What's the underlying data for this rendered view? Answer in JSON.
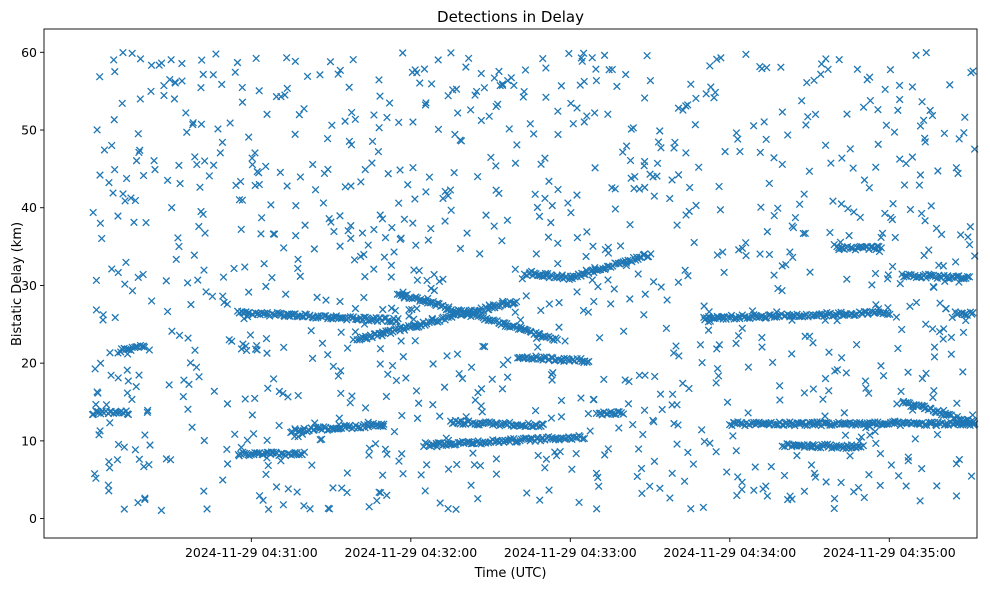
{
  "chart_data": {
    "type": "scatter",
    "title": "Detections in Delay",
    "xlabel": "Time (UTC)",
    "ylabel": "Bistatic Delay (km)",
    "x_tick_labels": [
      "2024-11-29 04:31:00",
      "2024-11-29 04:32:00",
      "2024-11-29 04:33:00",
      "2024-11-29 04:34:00",
      "2024-11-29 04:35:00"
    ],
    "x_ticks_sec": [
      60,
      120,
      180,
      240,
      300
    ],
    "y_ticks": [
      0,
      10,
      20,
      30,
      40,
      50,
      60
    ],
    "xlim_sec": [
      -18,
      333
    ],
    "ylim": [
      -2.5,
      63
    ],
    "grid": false,
    "marker": "x",
    "color": "#1f77b4",
    "tracks": [
      {
        "t_start": 0,
        "t_end": 14,
        "y_start": 13.6,
        "y_end": 13.6
      },
      {
        "t_start": 10,
        "t_end": 20,
        "y_start": 21.5,
        "y_end": 22.3
      },
      {
        "t_start": 55,
        "t_end": 115,
        "y_start": 26.5,
        "y_end": 25.5
      },
      {
        "t_start": 75,
        "t_end": 110,
        "y_start": 11.3,
        "y_end": 12.1
      },
      {
        "t_start": 100,
        "t_end": 160,
        "y_start": 23.0,
        "y_end": 28.0
      },
      {
        "t_start": 115,
        "t_end": 175,
        "y_start": 29.0,
        "y_end": 23.0
      },
      {
        "t_start": 135,
        "t_end": 170,
        "y_start": 12.4,
        "y_end": 12.0
      },
      {
        "t_start": 125,
        "t_end": 185,
        "y_start": 9.5,
        "y_end": 10.5
      },
      {
        "t_start": 160,
        "t_end": 187,
        "y_start": 20.8,
        "y_end": 20.3
      },
      {
        "t_start": 180,
        "t_end": 210,
        "y_start": 31.0,
        "y_end": 34.0
      },
      {
        "t_start": 163,
        "t_end": 180,
        "y_start": 31.5,
        "y_end": 31.0
      },
      {
        "t_start": 230,
        "t_end": 300,
        "y_start": 25.8,
        "y_end": 26.5
      },
      {
        "t_start": 240,
        "t_end": 340,
        "y_start": 12.2,
        "y_end": 12.2
      },
      {
        "t_start": 305,
        "t_end": 340,
        "y_start": 15.0,
        "y_end": 11.5
      },
      {
        "t_start": 305,
        "t_end": 330,
        "y_start": 31.3,
        "y_end": 31.0
      },
      {
        "t_start": 325,
        "t_end": 340,
        "y_start": 26.4,
        "y_end": 26.4
      },
      {
        "t_start": 260,
        "t_end": 290,
        "y_start": 9.5,
        "y_end": 9.2
      },
      {
        "t_start": 280,
        "t_end": 297,
        "y_start": 34.8,
        "y_end": 34.8
      },
      {
        "t_start": 55,
        "t_end": 80,
        "y_start": 8.3,
        "y_end": 8.3
      },
      {
        "t_start": 190,
        "t_end": 200,
        "y_start": 13.5,
        "y_end": 13.5
      }
    ],
    "noise_count": 1100,
    "noise_t_range": [
      0,
      340
    ],
    "noise_y_range": [
      1,
      60
    ]
  }
}
